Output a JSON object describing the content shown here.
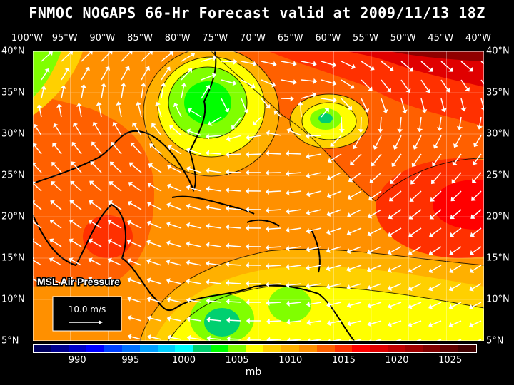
{
  "title": "FNMOC NOGAPS 66-Hr Forecast valid at 2009/11/13 18Z",
  "lon_labels": [
    "100°W",
    "95°W",
    "90°W",
    "85°W",
    "80°W",
    "75°W",
    "70°W",
    "65°W",
    "60°W",
    "55°W",
    "50°W",
    "45°W",
    "40°W"
  ],
  "lat_labels": [
    "40°N",
    "35°N",
    "30°N",
    "25°N",
    "20°N",
    "15°N",
    "10°N",
    "5°N"
  ],
  "panel_label": "MSL Air Pressure",
  "wind_reference": "10.0 m/s",
  "colorbar": {
    "colors": [
      "#000060",
      "#000090",
      "#0000c8",
      "#0000ff",
      "#0040ff",
      "#0070ff",
      "#00a0ff",
      "#00d0ff",
      "#00ffff",
      "#00d070",
      "#00ff00",
      "#80ff00",
      "#ffff00",
      "#ffd000",
      "#ffb000",
      "#ff9000",
      "#ff6000",
      "#ff3000",
      "#ff0000",
      "#e00000",
      "#c00000",
      "#a00000",
      "#800000",
      "#600000",
      "#400000"
    ],
    "tick_labels": [
      "990",
      "995",
      "1000",
      "1005",
      "1010",
      "1015",
      "1020",
      "1025"
    ],
    "unit": "mb"
  },
  "map": {
    "background_color": "#ff9000",
    "grid_on": true
  }
}
